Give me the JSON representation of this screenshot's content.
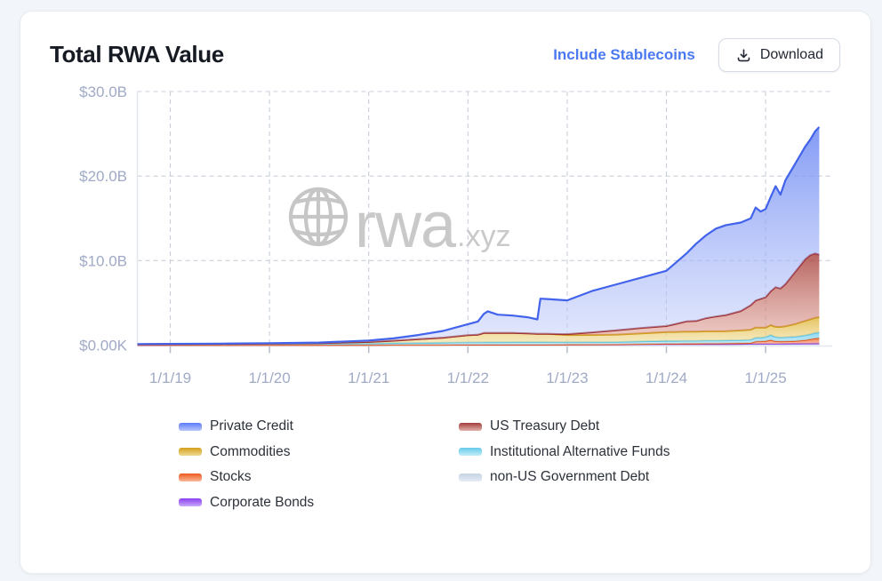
{
  "card": {
    "title": "Total RWA Value",
    "actions": {
      "include_stablecoins": "Include Stablecoins",
      "download": "Download"
    }
  },
  "watermark": {
    "brand": "rwa",
    "tld": ".xyz"
  },
  "chart_data": {
    "type": "area",
    "stacked": true,
    "title": "Total RWA Value",
    "y_unit": "USD billions",
    "ylim": [
      0,
      30
    ],
    "grid": "dashed horizontal and vertical",
    "legend_position": "bottom",
    "x_unit": "decimal year",
    "x_ticks": [
      {
        "label": "1/1/19",
        "year": 2019
      },
      {
        "label": "1/1/20",
        "year": 2020
      },
      {
        "label": "1/1/21",
        "year": 2021
      },
      {
        "label": "1/1/22",
        "year": 2022
      },
      {
        "label": "1/1/23",
        "year": 2023
      },
      {
        "label": "1/1/24",
        "year": 2024
      },
      {
        "label": "1/1/25",
        "year": 2025
      }
    ],
    "y_ticks": [
      {
        "label": "$0.00K",
        "value": 0
      },
      {
        "label": "$10.0B",
        "value": 10
      },
      {
        "label": "$20.0B",
        "value": 20
      },
      {
        "label": "$30.0B",
        "value": 30
      }
    ],
    "x": [
      2018.67,
      2019.0,
      2019.5,
      2020.0,
      2020.5,
      2021.0,
      2021.25,
      2021.5,
      2021.75,
      2022.0,
      2022.1,
      2022.16,
      2022.2,
      2022.3,
      2022.45,
      2022.6,
      2022.7,
      2022.73,
      2022.8,
      2023.0,
      2023.25,
      2023.5,
      2023.75,
      2024.0,
      2024.1,
      2024.2,
      2024.3,
      2024.4,
      2024.5,
      2024.6,
      2024.75,
      2024.85,
      2024.9,
      2024.95,
      2025.0,
      2025.05,
      2025.1,
      2025.15,
      2025.2,
      2025.3,
      2025.4,
      2025.45,
      2025.5,
      2025.54
    ],
    "series": [
      {
        "key": "non_us_gov",
        "name": "non-US Government Debt",
        "color": "#c2cfe0",
        "fill_top": "rgba(205,216,232,0.95)",
        "fill_bottom": "rgba(226,234,243,0.95)",
        "swatch": [
          "#c7d4e4",
          "#e4ecf5"
        ],
        "stroke_width": 1.2,
        "values": [
          0.01,
          0.01,
          0.01,
          0.02,
          0.02,
          0.02,
          0.03,
          0.03,
          0.03,
          0.04,
          0.04,
          0.04,
          0.04,
          0.04,
          0.04,
          0.04,
          0.04,
          0.04,
          0.04,
          0.05,
          0.05,
          0.05,
          0.05,
          0.06,
          0.06,
          0.06,
          0.06,
          0.06,
          0.06,
          0.06,
          0.06,
          0.07,
          0.07,
          0.07,
          0.07,
          0.07,
          0.07,
          0.07,
          0.07,
          0.08,
          0.08,
          0.08,
          0.08,
          0.08
        ]
      },
      {
        "key": "corporate_bonds",
        "name": "Corporate Bonds",
        "color": "#8438e8",
        "fill_top": "rgba(150,90,235,0.9)",
        "fill_bottom": "rgba(200,170,245,0.8)",
        "swatch": [
          "#8a3ff0",
          "#c9abf7"
        ],
        "stroke_width": 1.6,
        "values": [
          0,
          0,
          0,
          0,
          0,
          0,
          0,
          0,
          0,
          0,
          0,
          0,
          0,
          0,
          0,
          0,
          0,
          0,
          0,
          0,
          0,
          0,
          0.04,
          0.05,
          0.05,
          0.05,
          0.05,
          0.06,
          0.06,
          0.06,
          0.07,
          0.08,
          0.08,
          0.08,
          0.09,
          0.09,
          0.09,
          0.09,
          0.1,
          0.1,
          0.11,
          0.11,
          0.12,
          0.12
        ]
      },
      {
        "key": "stocks",
        "name": "Stocks",
        "color": "#e8500f",
        "fill_top": "rgba(240,110,55,0.9)",
        "fill_bottom": "rgba(248,185,160,0.7)",
        "swatch": [
          "#ee5a1e",
          "#f9b99a"
        ],
        "stroke_width": 1.8,
        "values": [
          0,
          0,
          0,
          0,
          0,
          0,
          0,
          0,
          0,
          0.01,
          0.01,
          0.01,
          0.01,
          0.01,
          0.01,
          0.01,
          0.01,
          0.01,
          0.01,
          0.02,
          0.03,
          0.04,
          0.05,
          0.06,
          0.06,
          0.07,
          0.07,
          0.08,
          0.08,
          0.09,
          0.1,
          0.1,
          0.28,
          0.3,
          0.32,
          0.45,
          0.3,
          0.28,
          0.28,
          0.3,
          0.4,
          0.5,
          0.6,
          0.64
        ]
      },
      {
        "key": "institutional_alt_funds",
        "name": "Institutional Alternative Funds",
        "color": "#5bc4e8",
        "fill_top": "rgba(125,211,239,0.9)",
        "fill_bottom": "rgba(190,233,248,0.75)",
        "swatch": [
          "#66cbea",
          "#c3ecf9"
        ],
        "stroke_width": 1.8,
        "values": [
          0.1,
          0.12,
          0.13,
          0.14,
          0.16,
          0.18,
          0.2,
          0.22,
          0.25,
          0.28,
          0.28,
          0.29,
          0.29,
          0.29,
          0.3,
          0.3,
          0.3,
          0.3,
          0.3,
          0.28,
          0.28,
          0.28,
          0.3,
          0.32,
          0.32,
          0.33,
          0.33,
          0.34,
          0.34,
          0.35,
          0.36,
          0.38,
          0.45,
          0.42,
          0.48,
          0.6,
          0.5,
          0.46,
          0.48,
          0.52,
          0.58,
          0.6,
          0.64,
          0.66
        ]
      },
      {
        "key": "commodities",
        "name": "Commodities",
        "color": "#cf9b16",
        "fill_top": "rgba(225,185,70,0.85)",
        "fill_bottom": "rgba(243,226,165,0.65)",
        "swatch": [
          "#d4a01c",
          "#efd98f"
        ],
        "stroke_width": 2,
        "values": [
          0,
          0,
          0.01,
          0.02,
          0.06,
          0.18,
          0.3,
          0.45,
          0.6,
          0.85,
          0.9,
          1.1,
          1.1,
          1.1,
          1.1,
          1.05,
          1.0,
          1.0,
          1.0,
          0.85,
          0.85,
          0.88,
          0.95,
          1.05,
          1.08,
          1.1,
          1.1,
          1.1,
          1.1,
          1.1,
          1.15,
          1.2,
          1.2,
          1.2,
          1.1,
          1.15,
          1.2,
          1.25,
          1.3,
          1.5,
          1.7,
          1.75,
          1.8,
          1.8
        ]
      },
      {
        "key": "us_treasury",
        "name": "US Treasury Debt",
        "color": "#9f2d2d",
        "fill_top": "rgba(165,60,55,0.8)",
        "fill_bottom": "rgba(230,170,160,0.55)",
        "swatch": [
          "#a33c3c",
          "#e3b2ab"
        ],
        "stroke_width": 2,
        "values": [
          0,
          0,
          0,
          0,
          0,
          0,
          0,
          0,
          0,
          0,
          0,
          0,
          0,
          0,
          0,
          0,
          0,
          0,
          0,
          0.1,
          0.3,
          0.52,
          0.65,
          0.72,
          0.95,
          1.2,
          1.25,
          1.55,
          1.75,
          1.9,
          2.3,
          2.9,
          3.2,
          3.4,
          3.6,
          4.0,
          4.7,
          4.55,
          5.0,
          6.2,
          7.3,
          7.6,
          7.6,
          7.4
        ]
      },
      {
        "key": "private_credit",
        "name": "Private Credit",
        "color": "#4263eb",
        "fill_top": "rgba(100,130,242,0.8)",
        "fill_bottom": "rgba(198,208,250,0.5)",
        "swatch": [
          "#5c7cfa",
          "#b9c7fb"
        ],
        "stroke_width": 2.2,
        "values": [
          0.01,
          0.02,
          0.03,
          0.04,
          0.06,
          0.17,
          0.27,
          0.5,
          0.8,
          1.3,
          1.57,
          2.26,
          2.56,
          2.16,
          2.05,
          1.9,
          1.7,
          4.15,
          4.1,
          4.0,
          4.89,
          5.43,
          5.96,
          6.54,
          7.28,
          8.0,
          9.14,
          9.8,
          10.4,
          10.64,
          10.46,
          10.27,
          11.0,
          10.33,
          10.44,
          11.14,
          11.94,
          11.1,
          12.27,
          12.8,
          13.33,
          13.66,
          14.46,
          15.1
        ]
      }
    ]
  },
  "legend": {
    "columns": [
      [
        "private_credit",
        "commodities",
        "stocks",
        "corporate_bonds"
      ],
      [
        "us_treasury",
        "institutional_alt_funds",
        "non_us_gov"
      ]
    ]
  },
  "colors": {
    "accent_link": "#4b79f1",
    "axis_label": "#a0aac6",
    "grid_line": "#c9cfda",
    "watermark": "#c9c9c9"
  }
}
